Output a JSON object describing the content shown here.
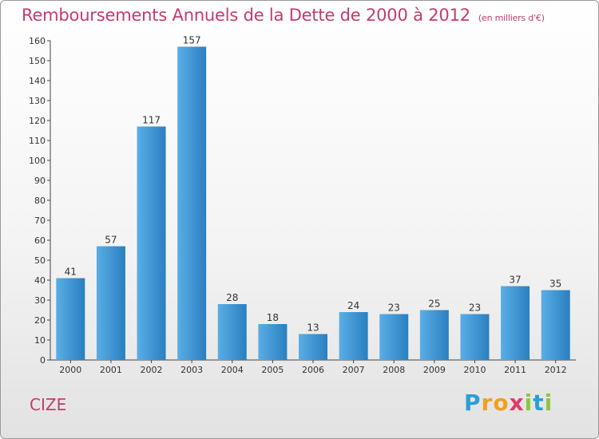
{
  "title": "Remboursements Annuels de la Dette de 2000 à 2012",
  "unit_label": "(en milliers d'€)",
  "commune": "CIZE",
  "logo": {
    "text": "Proxiti",
    "letters": [
      "P",
      "r",
      "o",
      "x",
      "i",
      "t",
      "i"
    ]
  },
  "colors": {
    "bar_light": "#5aaee6",
    "bar_dark": "#2a7fc0",
    "title": "#c63a6e"
  },
  "chart_data": {
    "type": "bar",
    "title": "Remboursements Annuels de la Dette de 2000 à 2012",
    "xlabel": "",
    "ylabel": "",
    "ylim": [
      0,
      160
    ],
    "yticks": [
      0,
      10,
      20,
      30,
      40,
      50,
      60,
      70,
      80,
      90,
      100,
      110,
      120,
      130,
      140,
      150,
      160
    ],
    "grid": false,
    "categories": [
      "2000",
      "2001",
      "2002",
      "2003",
      "2004",
      "2005",
      "2006",
      "2007",
      "2008",
      "2009",
      "2010",
      "2011",
      "2012"
    ],
    "values": [
      41,
      57,
      117,
      157,
      28,
      18,
      13,
      24,
      23,
      25,
      23,
      37,
      35
    ]
  }
}
